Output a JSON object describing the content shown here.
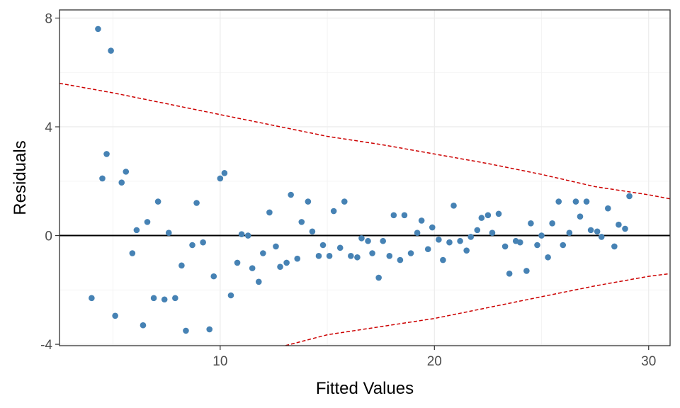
{
  "chart_data": {
    "type": "scatter",
    "title": "",
    "xlabel": "Fitted Values",
    "ylabel": "Residuals",
    "xlim": [
      2.5,
      31
    ],
    "ylim": [
      -4.05,
      8.3
    ],
    "x_ticks": [
      10,
      20,
      30
    ],
    "y_ticks": [
      -4,
      0,
      4,
      8
    ],
    "grid": true,
    "point_color": "#4682B4",
    "zero_line_color": "#000000",
    "band_color": "#CC0000",
    "points": [
      {
        "x": 4.0,
        "y": -2.3
      },
      {
        "x": 4.3,
        "y": 7.6
      },
      {
        "x": 4.5,
        "y": 2.1
      },
      {
        "x": 4.7,
        "y": 3.0
      },
      {
        "x": 4.9,
        "y": 6.8
      },
      {
        "x": 5.1,
        "y": -2.95
      },
      {
        "x": 5.4,
        "y": 1.95
      },
      {
        "x": 5.6,
        "y": 2.35
      },
      {
        "x": 5.9,
        "y": -0.65
      },
      {
        "x": 6.1,
        "y": 0.2
      },
      {
        "x": 6.4,
        "y": -3.3
      },
      {
        "x": 6.6,
        "y": 0.5
      },
      {
        "x": 6.9,
        "y": -2.3
      },
      {
        "x": 7.1,
        "y": 1.25
      },
      {
        "x": 7.4,
        "y": -2.35
      },
      {
        "x": 7.6,
        "y": 0.1
      },
      {
        "x": 7.9,
        "y": -2.3
      },
      {
        "x": 8.2,
        "y": -1.1
      },
      {
        "x": 8.4,
        "y": -3.5
      },
      {
        "x": 8.7,
        "y": -0.35
      },
      {
        "x": 8.9,
        "y": 1.2
      },
      {
        "x": 9.2,
        "y": -0.25
      },
      {
        "x": 9.5,
        "y": -3.45
      },
      {
        "x": 9.7,
        "y": -1.5
      },
      {
        "x": 10.0,
        "y": 2.1
      },
      {
        "x": 10.2,
        "y": 2.3
      },
      {
        "x": 10.5,
        "y": -2.2
      },
      {
        "x": 10.8,
        "y": -1.0
      },
      {
        "x": 11.0,
        "y": 0.05
      },
      {
        "x": 11.3,
        "y": 0.0
      },
      {
        "x": 11.5,
        "y": -1.2
      },
      {
        "x": 11.8,
        "y": -1.7
      },
      {
        "x": 12.0,
        "y": -0.65
      },
      {
        "x": 12.3,
        "y": 0.85
      },
      {
        "x": 12.6,
        "y": -0.4
      },
      {
        "x": 12.8,
        "y": -1.15
      },
      {
        "x": 13.1,
        "y": -1.0
      },
      {
        "x": 13.3,
        "y": 1.5
      },
      {
        "x": 13.6,
        "y": -0.85
      },
      {
        "x": 13.8,
        "y": 0.5
      },
      {
        "x": 14.1,
        "y": 1.25
      },
      {
        "x": 14.3,
        "y": 0.15
      },
      {
        "x": 14.6,
        "y": -0.75
      },
      {
        "x": 14.8,
        "y": -0.35
      },
      {
        "x": 15.1,
        "y": -0.75
      },
      {
        "x": 15.3,
        "y": 0.9
      },
      {
        "x": 15.6,
        "y": -0.45
      },
      {
        "x": 15.8,
        "y": 1.25
      },
      {
        "x": 16.1,
        "y": -0.75
      },
      {
        "x": 16.4,
        "y": -0.8
      },
      {
        "x": 16.6,
        "y": -0.1
      },
      {
        "x": 16.9,
        "y": -0.2
      },
      {
        "x": 17.1,
        "y": -0.65
      },
      {
        "x": 17.4,
        "y": -1.55
      },
      {
        "x": 17.6,
        "y": -0.2
      },
      {
        "x": 17.9,
        "y": -0.75
      },
      {
        "x": 18.1,
        "y": 0.75
      },
      {
        "x": 18.4,
        "y": -0.9
      },
      {
        "x": 18.6,
        "y": 0.75
      },
      {
        "x": 18.9,
        "y": -0.65
      },
      {
        "x": 19.2,
        "y": 0.1
      },
      {
        "x": 19.4,
        "y": 0.55
      },
      {
        "x": 19.7,
        "y": -0.5
      },
      {
        "x": 19.9,
        "y": 0.3
      },
      {
        "x": 20.2,
        "y": -0.15
      },
      {
        "x": 20.4,
        "y": -0.9
      },
      {
        "x": 20.7,
        "y": -0.25
      },
      {
        "x": 20.9,
        "y": 1.1
      },
      {
        "x": 21.2,
        "y": -0.2
      },
      {
        "x": 21.5,
        "y": -0.55
      },
      {
        "x": 21.7,
        "y": -0.05
      },
      {
        "x": 22.0,
        "y": 0.2
      },
      {
        "x": 22.2,
        "y": 0.65
      },
      {
        "x": 22.5,
        "y": 0.75
      },
      {
        "x": 22.7,
        "y": 0.1
      },
      {
        "x": 23.0,
        "y": 0.8
      },
      {
        "x": 23.3,
        "y": -0.4
      },
      {
        "x": 23.5,
        "y": -1.4
      },
      {
        "x": 23.8,
        "y": -0.2
      },
      {
        "x": 24.0,
        "y": -0.25
      },
      {
        "x": 24.3,
        "y": -1.3
      },
      {
        "x": 24.5,
        "y": 0.45
      },
      {
        "x": 24.8,
        "y": -0.35
      },
      {
        "x": 25.0,
        "y": 0.0
      },
      {
        "x": 25.3,
        "y": -0.8
      },
      {
        "x": 25.5,
        "y": 0.45
      },
      {
        "x": 25.8,
        "y": 1.25
      },
      {
        "x": 26.0,
        "y": -0.35
      },
      {
        "x": 26.3,
        "y": 0.1
      },
      {
        "x": 26.6,
        "y": 1.25
      },
      {
        "x": 26.8,
        "y": 0.7
      },
      {
        "x": 27.1,
        "y": 1.25
      },
      {
        "x": 27.3,
        "y": 0.2
      },
      {
        "x": 27.6,
        "y": 0.15
      },
      {
        "x": 27.8,
        "y": -0.05
      },
      {
        "x": 28.1,
        "y": 1.0
      },
      {
        "x": 28.4,
        "y": -0.4
      },
      {
        "x": 28.6,
        "y": 0.4
      },
      {
        "x": 28.9,
        "y": 0.25
      },
      {
        "x": 29.1,
        "y": 1.45
      }
    ],
    "band_upper": [
      {
        "x": 2.5,
        "y": 5.6
      },
      {
        "x": 5.0,
        "y": 5.25
      },
      {
        "x": 7.5,
        "y": 4.85
      },
      {
        "x": 10.0,
        "y": 4.45
      },
      {
        "x": 12.5,
        "y": 4.05
      },
      {
        "x": 15.0,
        "y": 3.65
      },
      {
        "x": 17.5,
        "y": 3.35
      },
      {
        "x": 20.0,
        "y": 3.0
      },
      {
        "x": 22.5,
        "y": 2.65
      },
      {
        "x": 25.0,
        "y": 2.25
      },
      {
        "x": 27.5,
        "y": 1.8
      },
      {
        "x": 30.0,
        "y": 1.5
      },
      {
        "x": 31.0,
        "y": 1.35
      }
    ],
    "band_lower": [
      {
        "x": 12.8,
        "y": -4.1
      },
      {
        "x": 15.0,
        "y": -3.65
      },
      {
        "x": 17.5,
        "y": -3.35
      },
      {
        "x": 20.0,
        "y": -3.05
      },
      {
        "x": 22.5,
        "y": -2.65
      },
      {
        "x": 25.0,
        "y": -2.25
      },
      {
        "x": 27.5,
        "y": -1.85
      },
      {
        "x": 30.0,
        "y": -1.5
      },
      {
        "x": 31.0,
        "y": -1.4
      }
    ]
  }
}
